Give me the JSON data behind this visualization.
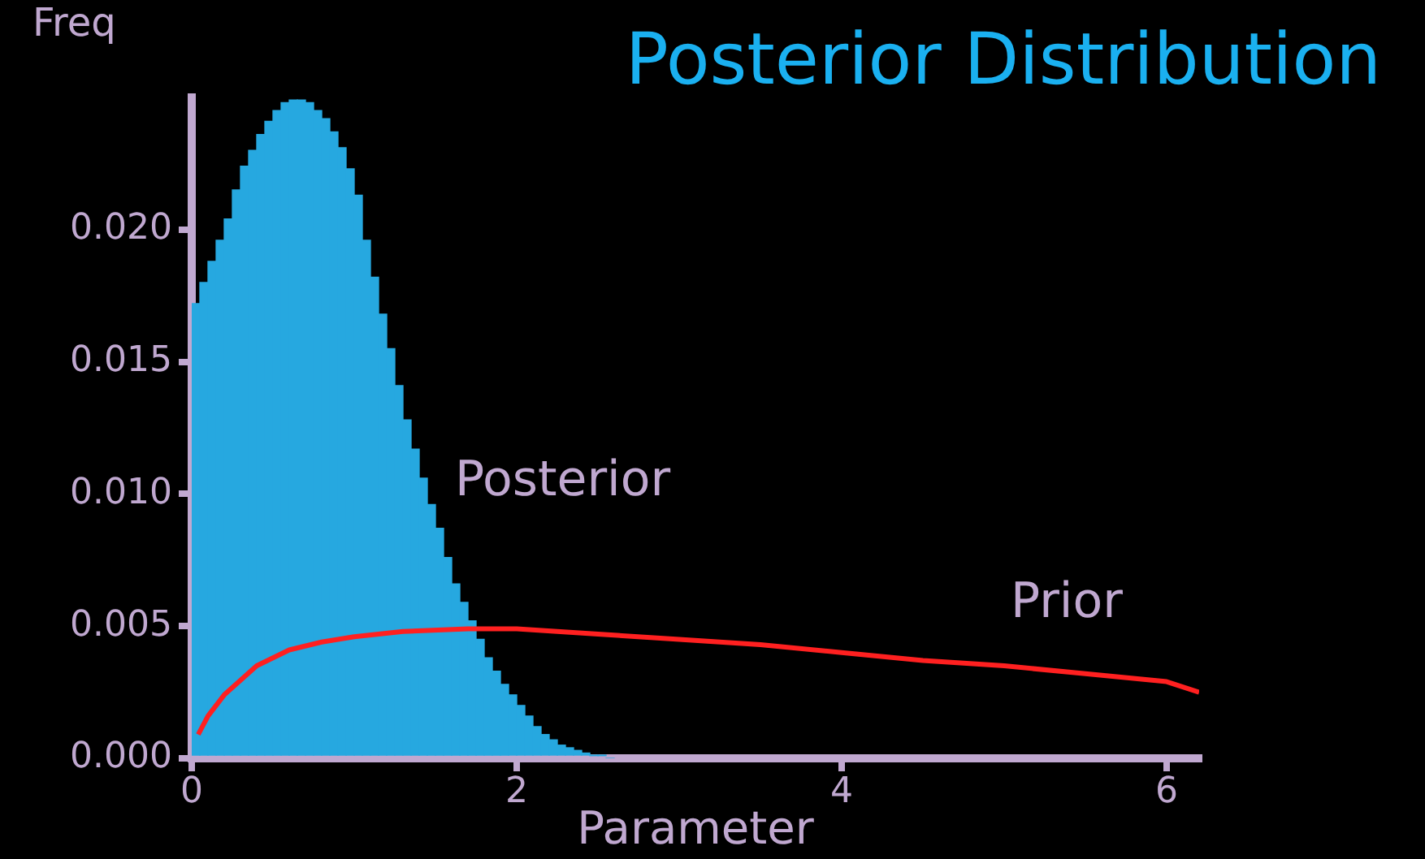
{
  "chart_data": {
    "type": "histogram",
    "title": "Posterior Distribution",
    "xlabel": "Parameter",
    "ylabel": "Freq",
    "bins": [
      0,
      0.05,
      0.1,
      0.15,
      0.2,
      0.25,
      0.3,
      0.35,
      0.4,
      0.45,
      0.5,
      0.55,
      0.6,
      0.65,
      0.7,
      0.75,
      0.8,
      0.85,
      0.9,
      0.95,
      1,
      1.05,
      1.1,
      1.15,
      1.2,
      1.25,
      1.3,
      1.35,
      1.4,
      1.45,
      1.5,
      1.55,
      1.6,
      1.65,
      1.7,
      1.75,
      1.8,
      1.85,
      1.9,
      1.95,
      2,
      2.05,
      2.1,
      2.15,
      2.2,
      2.25,
      2.3,
      2.35,
      2.4,
      2.45,
      2.5,
      2.55,
      2.6
    ],
    "values": [
      0.0172,
      0.018,
      0.0188,
      0.0196,
      0.0204,
      0.0215,
      0.0224,
      0.023,
      0.0236,
      0.0241,
      0.0245,
      0.0248,
      0.0249,
      0.0249,
      0.0248,
      0.0245,
      0.0242,
      0.0237,
      0.0231,
      0.0223,
      0.0213,
      0.0196,
      0.0182,
      0.0168,
      0.0155,
      0.0141,
      0.0128,
      0.0117,
      0.0106,
      0.0096,
      0.0087,
      0.0076,
      0.0066,
      0.0059,
      0.0052,
      0.0045,
      0.0038,
      0.0033,
      0.0028,
      0.0024,
      0.002,
      0.0016,
      0.0012,
      0.0009,
      0.0007,
      0.0005,
      0.0004,
      0.0003,
      0.0002,
      0.0001,
      0.0001,
      0
    ],
    "color": "#26a8e0",
    "series": [
      {
        "type": "line",
        "color": "#ff2020",
        "x": [
          0.04,
          0.1,
          0.2,
          0.4,
          0.6,
          0.8,
          1,
          1.3,
          1.7,
          2,
          2.5,
          3,
          3.5,
          4,
          4.5,
          5,
          5.5,
          6,
          6.2
        ],
        "values": [
          0.0009,
          0.0016,
          0.0024,
          0.0035,
          0.0041,
          0.0044,
          0.0046,
          0.0048,
          0.0049,
          0.0049,
          0.0047,
          0.0045,
          0.0043,
          0.004,
          0.0037,
          0.0035,
          0.0032,
          0.0029,
          0.0025
        ]
      }
    ],
    "annotations": [
      "Posterior",
      "Prior"
    ],
    "xlim": [
      0,
      6.2
    ],
    "xticks": [
      0,
      2,
      4,
      6
    ],
    "ylim": [
      0,
      0.025
    ],
    "yticks": [
      {
        "value": 0,
        "label": "0.000"
      },
      {
        "value": 0.005,
        "label": "0.005"
      },
      {
        "value": 0.01,
        "label": "0.010"
      },
      {
        "value": 0.015,
        "label": "0.015"
      },
      {
        "value": 0.02,
        "label": "0.020"
      }
    ],
    "grid": false,
    "legend": false,
    "marker": "none",
    "line_style": "solid"
  }
}
